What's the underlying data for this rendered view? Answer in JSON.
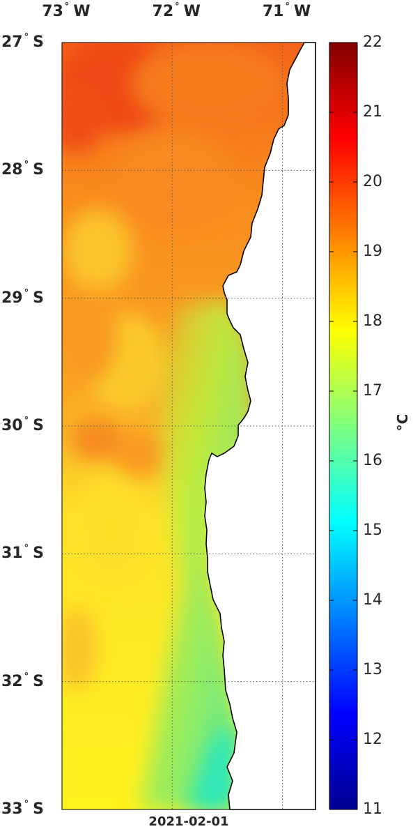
{
  "lon_labels": [
    {
      "deg": "73",
      "hemi": "W",
      "lon": -73
    },
    {
      "deg": "72",
      "hemi": "W",
      "lon": -72
    },
    {
      "deg": "71",
      "hemi": "W",
      "lon": -71
    }
  ],
  "lat_labels": [
    {
      "deg": "27",
      "hemi": "S",
      "lat": -27
    },
    {
      "deg": "28",
      "hemi": "S",
      "lat": -28
    },
    {
      "deg": "29",
      "hemi": "S",
      "lat": -29
    },
    {
      "deg": "30",
      "hemi": "S",
      "lat": -30
    },
    {
      "deg": "31",
      "hemi": "S",
      "lat": -31
    },
    {
      "deg": "32",
      "hemi": "S",
      "lat": -32
    },
    {
      "deg": "33",
      "hemi": "S",
      "lat": -33
    }
  ],
  "date": "2021-02-01",
  "colorbar": {
    "unit": "°C",
    "min": 11,
    "max": 22,
    "ticks": [
      "22",
      "21",
      "20",
      "19",
      "18",
      "17",
      "16",
      "15",
      "14",
      "13",
      "12",
      "11"
    ],
    "colormap": "jet"
  },
  "map_extent": {
    "lon_min": -73,
    "lon_max": -70.7,
    "lat_min": -33,
    "lat_max": -27
  },
  "colors": {
    "land": "#ffffff",
    "coastline": "#000000",
    "grid": "#555555"
  }
}
